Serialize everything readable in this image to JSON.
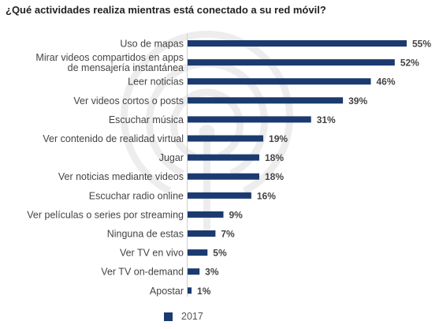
{
  "chart_data": {
    "type": "bar",
    "orientation": "horizontal",
    "title": "¿Qué actividades realiza mientras está conectado a su red móvil?",
    "categories": [
      [
        "Uso de mapas"
      ],
      [
        "Mirar videos compartidos en apps",
        "de mensajería instantánea"
      ],
      [
        "Leer noticias"
      ],
      [
        "Ver videos cortos o posts"
      ],
      [
        "Escuchar música"
      ],
      [
        "Ver contenido de realidad virtual"
      ],
      [
        "Jugar"
      ],
      [
        "Ver noticias mediante videos"
      ],
      [
        "Escuchar radio online"
      ],
      [
        "Ver películas o series por streaming"
      ],
      [
        "Ninguna de estas"
      ],
      [
        "Ver TV en vivo"
      ],
      [
        "Ver TV on-demand"
      ],
      [
        "Apostar"
      ]
    ],
    "series": [
      {
        "name": "2017",
        "values": [
          55,
          52,
          46,
          39,
          31,
          19,
          18,
          18,
          16,
          9,
          7,
          5,
          3,
          1
        ],
        "value_labels": [
          "55%",
          "52%",
          "46%",
          "39%",
          "31%",
          "19%",
          "18%",
          "18%",
          "16%",
          "9%",
          "7%",
          "5%",
          "3%",
          "1%"
        ],
        "color": "#1b3a70"
      }
    ],
    "xlim": [
      0,
      55
    ],
    "legend_position": "bottom",
    "grid": false
  }
}
